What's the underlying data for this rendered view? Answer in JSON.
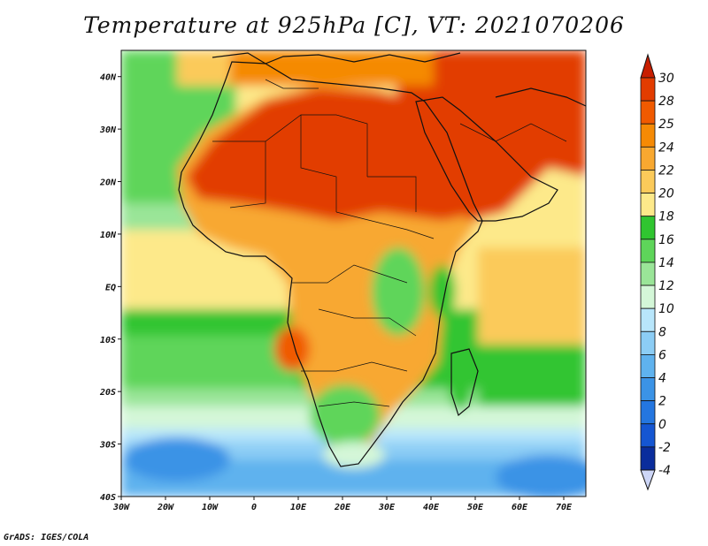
{
  "title": "Temperature at 925hPa [C], VT: 2021070206",
  "footer": "GrADS: IGES/COLA",
  "map": {
    "lon_range": [
      -30,
      75
    ],
    "lat_range": [
      -40,
      45
    ],
    "lon_ticks": [
      "30W",
      "20W",
      "10W",
      "0",
      "10E",
      "20E",
      "30E",
      "40E",
      "50E",
      "60E",
      "70E"
    ],
    "lat_ticks": [
      "40N",
      "30N",
      "20N",
      "10N",
      "EQ",
      "10S",
      "20S",
      "30S",
      "40S"
    ],
    "variable": "Temperature",
    "level": "925hPa",
    "units": "C",
    "valid_time": "2021070206"
  },
  "colorbar": {
    "labels": [
      "30",
      "28",
      "25",
      "24",
      "22",
      "20",
      "18",
      "16",
      "14",
      "12",
      "10",
      "8",
      "6",
      "4",
      "2",
      "0",
      "-2",
      "-4"
    ],
    "colors_top_to_bottom": [
      "#e23c00",
      "#f05a00",
      "#f58a05",
      "#f8a830",
      "#fbca5a",
      "#fde98a",
      "#30c530",
      "#5ed55a",
      "#9ae598",
      "#d4f7d8",
      "#b8e6fb",
      "#8ccdf5",
      "#5fb2ee",
      "#3b93e6",
      "#2476e0",
      "#1556d2",
      "#0a2d9c"
    ],
    "over_color": "#c81e00",
    "under_color": "#cdd6f7"
  }
}
